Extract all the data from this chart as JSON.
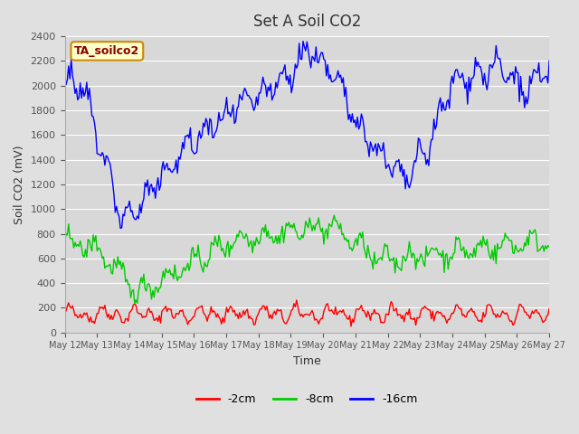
{
  "title": "Set A Soil CO2",
  "ylabel": "Soil CO2 (mV)",
  "xlabel": "Time",
  "annotation": "TA_soilco2",
  "ylim": [
    0,
    2400
  ],
  "fig_facecolor": "#e0e0e0",
  "plot_bg_color": "#d8d8d8",
  "series": {
    "red": {
      "label": "-2cm",
      "color": "#ff0000"
    },
    "green": {
      "label": "-8cm",
      "color": "#00cc00"
    },
    "blue": {
      "label": "-16cm",
      "color": "#0000ff"
    }
  },
  "x_tick_labels": [
    "May 12",
    "May 13",
    "May 14",
    "May 15",
    "May 16",
    "May 17",
    "May 18",
    "May 19",
    "May 20",
    "May 21",
    "May 22",
    "May 23",
    "May 24",
    "May 25",
    "May 26",
    "May 27"
  ],
  "yticks": [
    0,
    200,
    400,
    600,
    800,
    1000,
    1200,
    1400,
    1600,
    1800,
    2000,
    2200,
    2400
  ],
  "n_points": 375
}
